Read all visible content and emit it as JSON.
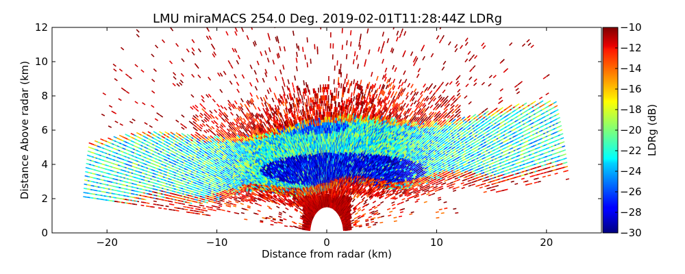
{
  "chart_data": {
    "type": "heatmap",
    "title": "LMU miraMACS 254.0 Deg. 2019-02-01T11:28:44Z  LDRg",
    "xlabel": "Distance from radar (km)",
    "ylabel": "Distance Above radar  (km)",
    "xlim": [
      -25,
      25
    ],
    "ylim": [
      0,
      12
    ],
    "xticks": [
      -20,
      -10,
      0,
      10,
      20
    ],
    "xtick_labels": [
      "−20",
      "−10",
      "0",
      "10",
      "20"
    ],
    "yticks": [
      0,
      2,
      4,
      6,
      8,
      10,
      12
    ],
    "ytick_labels": [
      "0",
      "2",
      "4",
      "6",
      "8",
      "10",
      "12"
    ],
    "colorbar": {
      "label": "LDRg (dB)",
      "range": [
        -30,
        -10
      ],
      "ticks": [
        -10,
        -12,
        -14,
        -16,
        -18,
        -20,
        -22,
        -24,
        -26,
        -28,
        -30
      ],
      "tick_labels": [
        "−10",
        "−12",
        "−14",
        "−16",
        "−18",
        "−20",
        "−22",
        "−24",
        "−26",
        "−28",
        "−30"
      ],
      "colormap": "jet"
    },
    "scan": {
      "type": "RHI",
      "azimuth_deg": 254.0,
      "max_range_km": 22,
      "min_elevation_deg": 5,
      "max_elevation_deg": 175
    },
    "features": [
      {
        "name": "main_precip_layer",
        "x_range_km": [
          -22,
          22
        ],
        "height_km": [
          2.5,
          6.5
        ],
        "ldr_db": -22
      },
      {
        "name": "low_ldr_core",
        "x_range_km": [
          -6,
          9
        ],
        "height_km": [
          2.6,
          4.6
        ],
        "ldr_db": -28
      },
      {
        "name": "upper_low_ldr_patch",
        "x_range_km": [
          -6,
          2
        ],
        "height_km": [
          5.7,
          6.5
        ],
        "ldr_db": -26
      },
      {
        "name": "melting_layer_bright_band",
        "x_range_km": [
          -22,
          22
        ],
        "height_km": [
          2.0,
          2.8
        ],
        "ldr_db": -13
      },
      {
        "name": "upper_noise_band",
        "x_range_km": [
          -12,
          12
        ],
        "height_km": [
          7.2,
          8.8
        ],
        "ldr_db": -12
      },
      {
        "name": "near_radar_clutter",
        "x_range_km": [
          -2,
          2
        ],
        "height_km": [
          0,
          2
        ],
        "ldr_db": -10
      },
      {
        "name": "sparse_noise_speckle",
        "x_range_km": [
          -20,
          20
        ],
        "height_km": [
          0,
          12
        ],
        "ldr_db": -10
      }
    ]
  }
}
